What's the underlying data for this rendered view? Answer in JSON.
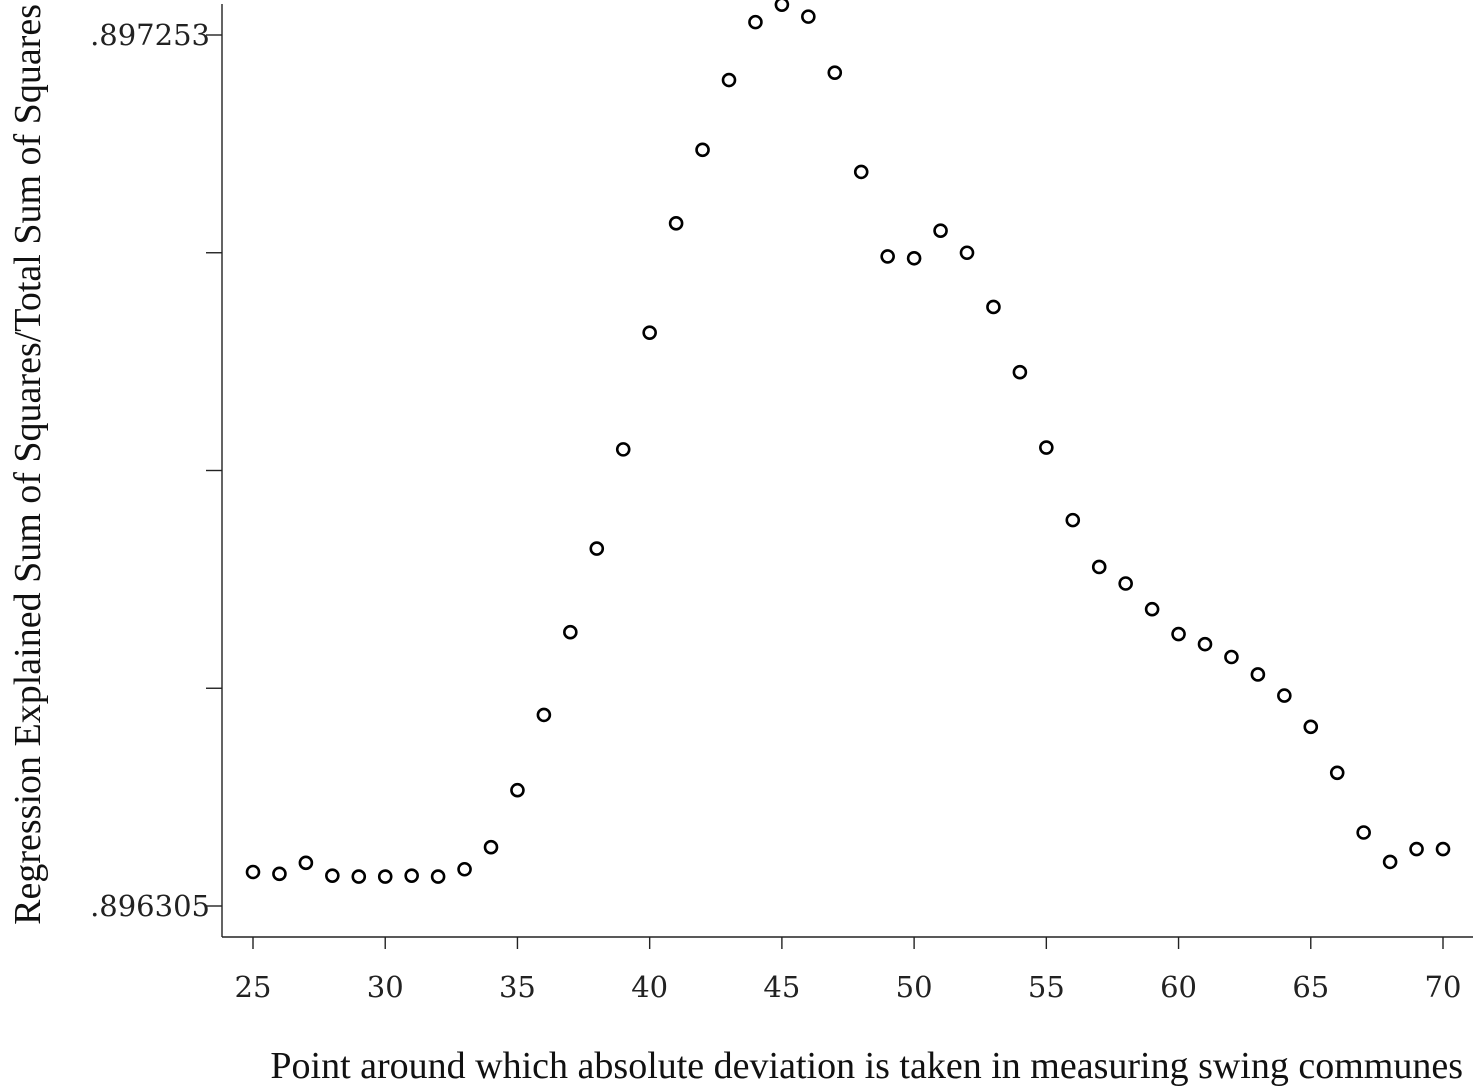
{
  "chart_data": {
    "type": "scatter",
    "title": "",
    "xlabel": "Point around which absolute deviation is taken in measuring swing communes",
    "ylabel": "Regression Explained Sum of Squares/Total Sum of Squares",
    "x_ticks": [
      "25",
      "30",
      "35",
      "40",
      "45",
      "50",
      "55",
      "60",
      "65",
      "70"
    ],
    "y_tick_labels": [
      ".897253",
      ".896305"
    ],
    "y_tick_values": [
      0.897253,
      0.897016,
      0.896779,
      0.896542,
      0.896305
    ],
    "xlim": [
      25,
      70
    ],
    "ylim": [
      0.896305,
      0.897253
    ],
    "grid": false,
    "legend": "none",
    "marker": "hollow-circle",
    "x": [
      25,
      26,
      27,
      28,
      29,
      30,
      31,
      32,
      33,
      34,
      35,
      36,
      37,
      38,
      39,
      40,
      41,
      42,
      43,
      44,
      45,
      46,
      47,
      48,
      49,
      50,
      51,
      52,
      53,
      54,
      55,
      56,
      57,
      58,
      59,
      60,
      61,
      62,
      63,
      64,
      65,
      66,
      67,
      68,
      69,
      70
    ],
    "y": [
      0.896342,
      0.89634,
      0.896352,
      0.896338,
      0.896337,
      0.896337,
      0.896338,
      0.896337,
      0.896345,
      0.896369,
      0.896431,
      0.896513,
      0.896603,
      0.896694,
      0.896802,
      0.896929,
      0.897048,
      0.897128,
      0.897204,
      0.897267,
      0.897286,
      0.897273,
      0.897212,
      0.897104,
      0.897012,
      0.89701,
      0.89704,
      0.897016,
      0.896957,
      0.896886,
      0.896804,
      0.896725,
      0.896674,
      0.896656,
      0.896628,
      0.896601,
      0.89659,
      0.896576,
      0.896557,
      0.896534,
      0.8965,
      0.89645,
      0.896385,
      0.896353,
      0.896367,
      0.896367
    ]
  }
}
